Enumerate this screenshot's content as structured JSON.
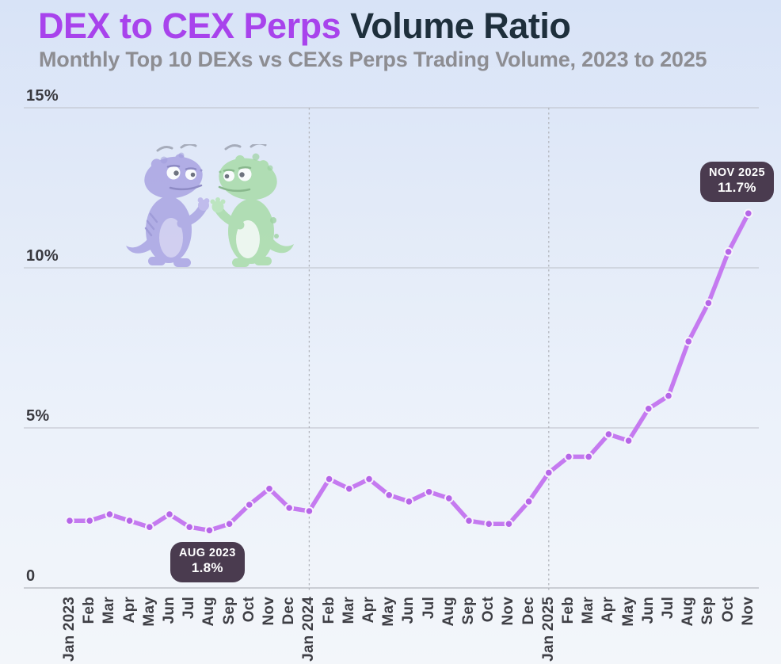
{
  "header": {
    "title_accent": "DEX to CEX Perps",
    "title_rest": " Volume Ratio",
    "subtitle": "Monthly Top 10 DEXs vs CEXs Perps Trading Volume, 2023 to 2025"
  },
  "colors": {
    "title_accent_purple": "#a843ec",
    "title_dark": "#1e2f3c",
    "line_purple": "#c57af0",
    "point_purple": "#b566e8",
    "pill_background": "#4a3b4f",
    "background_top": "#d8e3f7",
    "background_bottom": "#f3f6fa"
  },
  "chart_data": {
    "type": "line",
    "title": "DEX to CEX Perps Volume Ratio",
    "subtitle": "Monthly Top 10 DEXs vs CEXs Perps Trading Volume, 2023 to 2025",
    "x": [
      "Jan 2023",
      "Feb",
      "Mar",
      "Apr",
      "May",
      "Jun",
      "Jul",
      "Aug",
      "Sep",
      "Oct",
      "Nov",
      "Dec",
      "Jan 2024",
      "Feb",
      "Mar",
      "Apr",
      "May",
      "Jun",
      "Jul",
      "Aug",
      "Sep",
      "Oct",
      "Nov",
      "Dec",
      "Jan 2025",
      "Feb",
      "Mar",
      "Apr",
      "May",
      "Jun",
      "Jul",
      "Aug",
      "Sep",
      "Oct",
      "Nov"
    ],
    "series": [
      {
        "name": "DEX to CEX perps volume ratio (%)",
        "values": [
          2.1,
          2.1,
          2.3,
          2.1,
          1.9,
          2.3,
          1.9,
          1.8,
          2.0,
          2.6,
          3.1,
          2.5,
          2.4,
          3.4,
          3.1,
          3.4,
          2.9,
          2.7,
          3.0,
          2.8,
          2.1,
          2.0,
          2.0,
          2.7,
          3.6,
          4.1,
          4.1,
          4.8,
          4.6,
          5.6,
          6.0,
          7.7,
          8.9,
          10.5,
          11.7
        ]
      }
    ],
    "ylim": [
      0,
      15
    ],
    "y_ticks": [
      {
        "value": 0,
        "label": "0"
      },
      {
        "value": 5,
        "label": "5%"
      },
      {
        "value": 10,
        "label": "10%"
      },
      {
        "value": 15,
        "label": "15%"
      }
    ],
    "year_separator_labels": [
      "Jan 2024",
      "Jan 2025"
    ],
    "grid": "horizontal solid lines at 0/5/10/15, dashed vertical year separators",
    "legend": "none",
    "annotations": [
      {
        "month": "Aug 2023",
        "index": 7,
        "label": "AUG 2023",
        "value_label": "1.8%"
      },
      {
        "month": "Nov 2025",
        "index": 34,
        "label": "NOV 2025",
        "value_label": "11.7%"
      }
    ]
  },
  "mascots": {
    "description": "two cartoon gecko mascots facing each other",
    "left_gecko_color": "#a7a1e2",
    "right_gecko_color": "#a6dba6"
  }
}
